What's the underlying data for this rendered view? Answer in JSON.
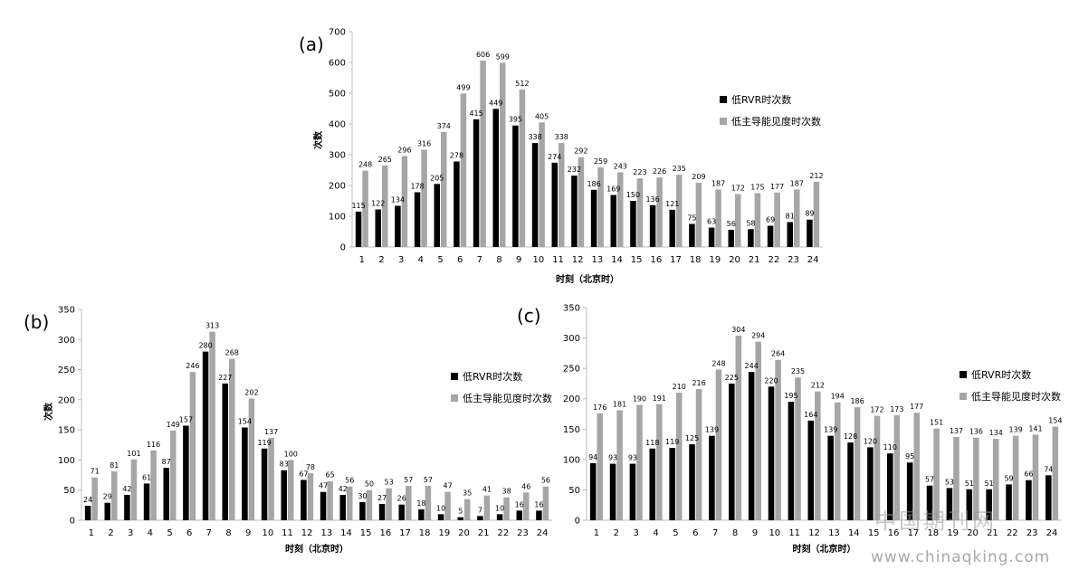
{
  "colors": {
    "series1": "#000000",
    "series2": "#a6a6a6",
    "axis": "#bfbfbf"
  },
  "watermark": {
    "cn": "中国期刊网",
    "url": "www.chinaqking.com"
  },
  "chart_data": [
    {
      "panel": "(a)",
      "type": "bar",
      "categories": [
        "1",
        "2",
        "3",
        "4",
        "5",
        "6",
        "7",
        "8",
        "9",
        "10",
        "11",
        "12",
        "13",
        "14",
        "15",
        "16",
        "17",
        "18",
        "19",
        "20",
        "21",
        "22",
        "23",
        "24"
      ],
      "series": [
        {
          "name": "低RVR时次数",
          "values": [
            115,
            122,
            134,
            178,
            205,
            278,
            415,
            449,
            395,
            338,
            274,
            232,
            186,
            169,
            150,
            136,
            121,
            75,
            63,
            56,
            58,
            69,
            81,
            89
          ]
        },
        {
          "name": "低主导能见度时次数",
          "values": [
            248,
            265,
            296,
            316,
            374,
            499,
            606,
            599,
            512,
            405,
            338,
            292,
            259,
            243,
            223,
            226,
            235,
            209,
            187,
            172,
            175,
            177,
            187,
            212
          ]
        }
      ],
      "ylim": [
        0,
        700
      ],
      "yticks": [
        "0",
        "100",
        "200",
        "300",
        "400",
        "500",
        "600",
        "700"
      ],
      "xlabel": "时刻（北京时）",
      "ylabel": "次数",
      "legend": "right"
    },
    {
      "panel": "(b)",
      "type": "bar",
      "categories": [
        "1",
        "2",
        "3",
        "4",
        "5",
        "6",
        "7",
        "8",
        "9",
        "10",
        "11",
        "12",
        "13",
        "14",
        "15",
        "16",
        "17",
        "18",
        "19",
        "20",
        "21",
        "22",
        "23",
        "24"
      ],
      "series": [
        {
          "name": "低RVR时次数",
          "values": [
            24,
            29,
            42,
            61,
            87,
            157,
            280,
            227,
            154,
            119,
            83,
            67,
            47,
            42,
            30,
            27,
            26,
            18,
            10,
            5,
            7,
            10,
            16,
            16
          ]
        },
        {
          "name": "低主导能见度时次数",
          "values": [
            71,
            81,
            101,
            116,
            149,
            246,
            313,
            268,
            202,
            137,
            100,
            78,
            65,
            56,
            50,
            53,
            57,
            57,
            47,
            35,
            41,
            38,
            46,
            56
          ]
        }
      ],
      "ylim": [
        0,
        350
      ],
      "yticks": [
        "0",
        "50",
        "100",
        "150",
        "200",
        "250",
        "300",
        "350"
      ],
      "xlabel": "时刻（北京时）",
      "ylabel": "次数",
      "legend": "right"
    },
    {
      "panel": "(c)",
      "type": "bar",
      "categories": [
        "1",
        "2",
        "3",
        "4",
        "5",
        "6",
        "7",
        "8",
        "9",
        "10",
        "11",
        "12",
        "13",
        "14",
        "15",
        "16",
        "17",
        "18",
        "19",
        "20",
        "21",
        "22",
        "23",
        "24"
      ],
      "series": [
        {
          "name": "低RVR时次数",
          "values": [
            94,
            93,
            93,
            118,
            119,
            125,
            139,
            225,
            244,
            220,
            195,
            164,
            139,
            128,
            120,
            110,
            95,
            57,
            53,
            51,
            51,
            59,
            66,
            74
          ]
        },
        {
          "name": "低主导能见度时次数",
          "values": [
            176,
            181,
            190,
            191,
            210,
            216,
            248,
            304,
            294,
            264,
            235,
            212,
            194,
            186,
            172,
            173,
            177,
            151,
            137,
            136,
            134,
            139,
            141,
            154
          ]
        }
      ],
      "ylim": [
        0,
        350
      ],
      "yticks": [
        "0",
        "50",
        "100",
        "150",
        "200",
        "250",
        "300",
        "350"
      ],
      "xlabel": "时刻（北京时）",
      "ylabel": "",
      "legend": "right"
    }
  ]
}
